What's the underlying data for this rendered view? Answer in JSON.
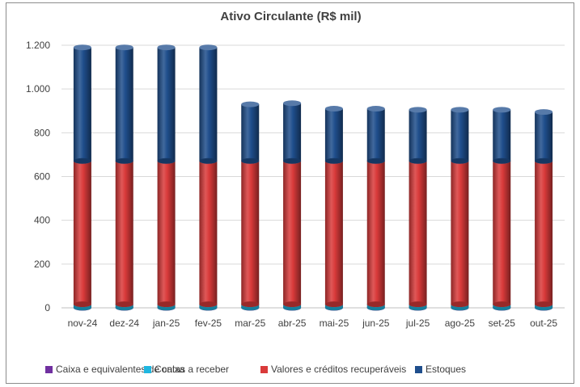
{
  "chart_data": {
    "type": "bar",
    "stacked": true,
    "title": "Ativo Circulante (R$ mil)",
    "xlabel": "",
    "ylabel": "",
    "ylim": [
      0,
      1200
    ],
    "yticks": [
      0,
      200,
      400,
      600,
      800,
      1000,
      1200
    ],
    "ytick_labels": [
      "0",
      "200",
      "400",
      "600",
      "800",
      "1.000",
      "1.200"
    ],
    "grid": true,
    "legend_position": "bottom",
    "categories": [
      "nov-24",
      "dez-24",
      "jan-25",
      "fev-25",
      "mar-25",
      "abr-25",
      "mai-25",
      "jun-25",
      "jul-25",
      "ago-25",
      "set-25",
      "out-25"
    ],
    "series": [
      {
        "name": "Caixa e equivalentes de caixa",
        "color": "#7030a0",
        "values": [
          1,
          1,
          1,
          1,
          1,
          1,
          1,
          1,
          1,
          1,
          1,
          1
        ]
      },
      {
        "name": "Contas a receber",
        "color": "#1fb6e0",
        "values": [
          15,
          15,
          15,
          15,
          15,
          15,
          15,
          15,
          15,
          15,
          15,
          15
        ]
      },
      {
        "name": "Valores e créditos recuperáveis",
        "color": "#d93a3a",
        "values": [
          655,
          655,
          655,
          655,
          655,
          655,
          655,
          655,
          655,
          655,
          655,
          655
        ]
      },
      {
        "name": "Estoques",
        "color": "#1f4e8c",
        "values": [
          519,
          519,
          519,
          519,
          259,
          264,
          239,
          239,
          234,
          234,
          234,
          224
        ]
      }
    ]
  }
}
